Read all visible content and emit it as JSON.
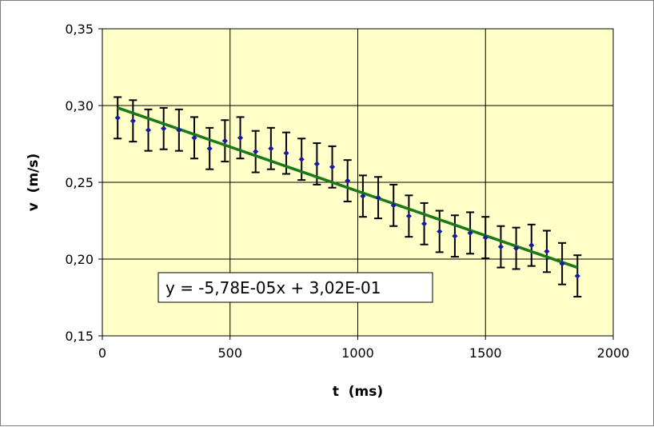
{
  "chart_data": {
    "type": "scatter",
    "title": "",
    "xlabel": "t  (ms)",
    "ylabel": "v  (m/s)",
    "xlim": [
      0,
      2000
    ],
    "ylim": [
      0.15,
      0.35
    ],
    "xticks": [
      0,
      500,
      1000,
      1500,
      2000
    ],
    "xtick_labels": [
      "0",
      "500",
      "1000",
      "1500",
      "2000"
    ],
    "yticks": [
      0.15,
      0.2,
      0.25,
      0.3,
      0.35
    ],
    "ytick_labels": [
      "0,15",
      "0,20",
      "0,25",
      "0,30",
      "0,35"
    ],
    "grid": true,
    "legend": "none",
    "colors": {
      "plot_background": "#ffffc8",
      "points": "#1a1aa0",
      "trendline": "#1a7a1a",
      "error_bars": "#000000",
      "grid": "#000000"
    },
    "series": [
      {
        "points": [
          {
            "x": 60,
            "y": 0.292
          },
          {
            "x": 120,
            "y": 0.29
          },
          {
            "x": 180,
            "y": 0.284
          },
          {
            "x": 240,
            "y": 0.285
          },
          {
            "x": 300,
            "y": 0.284
          },
          {
            "x": 360,
            "y": 0.279
          },
          {
            "x": 420,
            "y": 0.272
          },
          {
            "x": 480,
            "y": 0.277
          },
          {
            "x": 540,
            "y": 0.279
          },
          {
            "x": 600,
            "y": 0.27
          },
          {
            "x": 660,
            "y": 0.272
          },
          {
            "x": 720,
            "y": 0.269
          },
          {
            "x": 780,
            "y": 0.265
          },
          {
            "x": 840,
            "y": 0.262
          },
          {
            "x": 900,
            "y": 0.26
          },
          {
            "x": 960,
            "y": 0.251
          },
          {
            "x": 1020,
            "y": 0.241
          },
          {
            "x": 1080,
            "y": 0.24
          },
          {
            "x": 1140,
            "y": 0.235
          },
          {
            "x": 1200,
            "y": 0.228
          },
          {
            "x": 1260,
            "y": 0.223
          },
          {
            "x": 1320,
            "y": 0.218
          },
          {
            "x": 1380,
            "y": 0.215
          },
          {
            "x": 1440,
            "y": 0.217
          },
          {
            "x": 1500,
            "y": 0.214
          },
          {
            "x": 1560,
            "y": 0.208
          },
          {
            "x": 1620,
            "y": 0.207
          },
          {
            "x": 1680,
            "y": 0.209
          },
          {
            "x": 1740,
            "y": 0.205
          },
          {
            "x": 1800,
            "y": 0.197
          },
          {
            "x": 1860,
            "y": 0.189
          }
        ],
        "error": 0.0135
      }
    ],
    "trendline": {
      "slope": -5.78e-05,
      "intercept": 0.302,
      "x_range": [
        60,
        1860
      ],
      "equation_label": "y = -5,78E-05x + 3,02E-01"
    }
  }
}
